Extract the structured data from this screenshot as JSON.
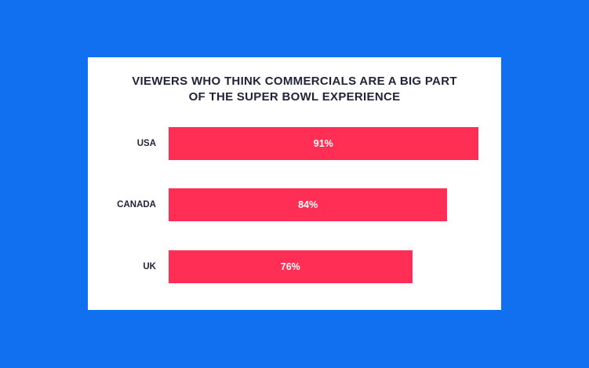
{
  "colors": {
    "background": "#1170f0",
    "card": "#ffffff",
    "bar": "#ff2e55",
    "text": "#23243a"
  },
  "chart_data": {
    "type": "bar",
    "orientation": "horizontal",
    "title": "VIEWERS WHO THINK COMMERCIALS ARE A BIG PART OF THE SUPER BOWL EXPERIENCE",
    "categories": [
      "USA",
      "CANADA",
      "UK"
    ],
    "values": [
      91,
      84,
      76
    ],
    "labels": [
      "91%",
      "84%",
      "76%"
    ],
    "unit": "%",
    "grid": false,
    "legend": "none"
  }
}
